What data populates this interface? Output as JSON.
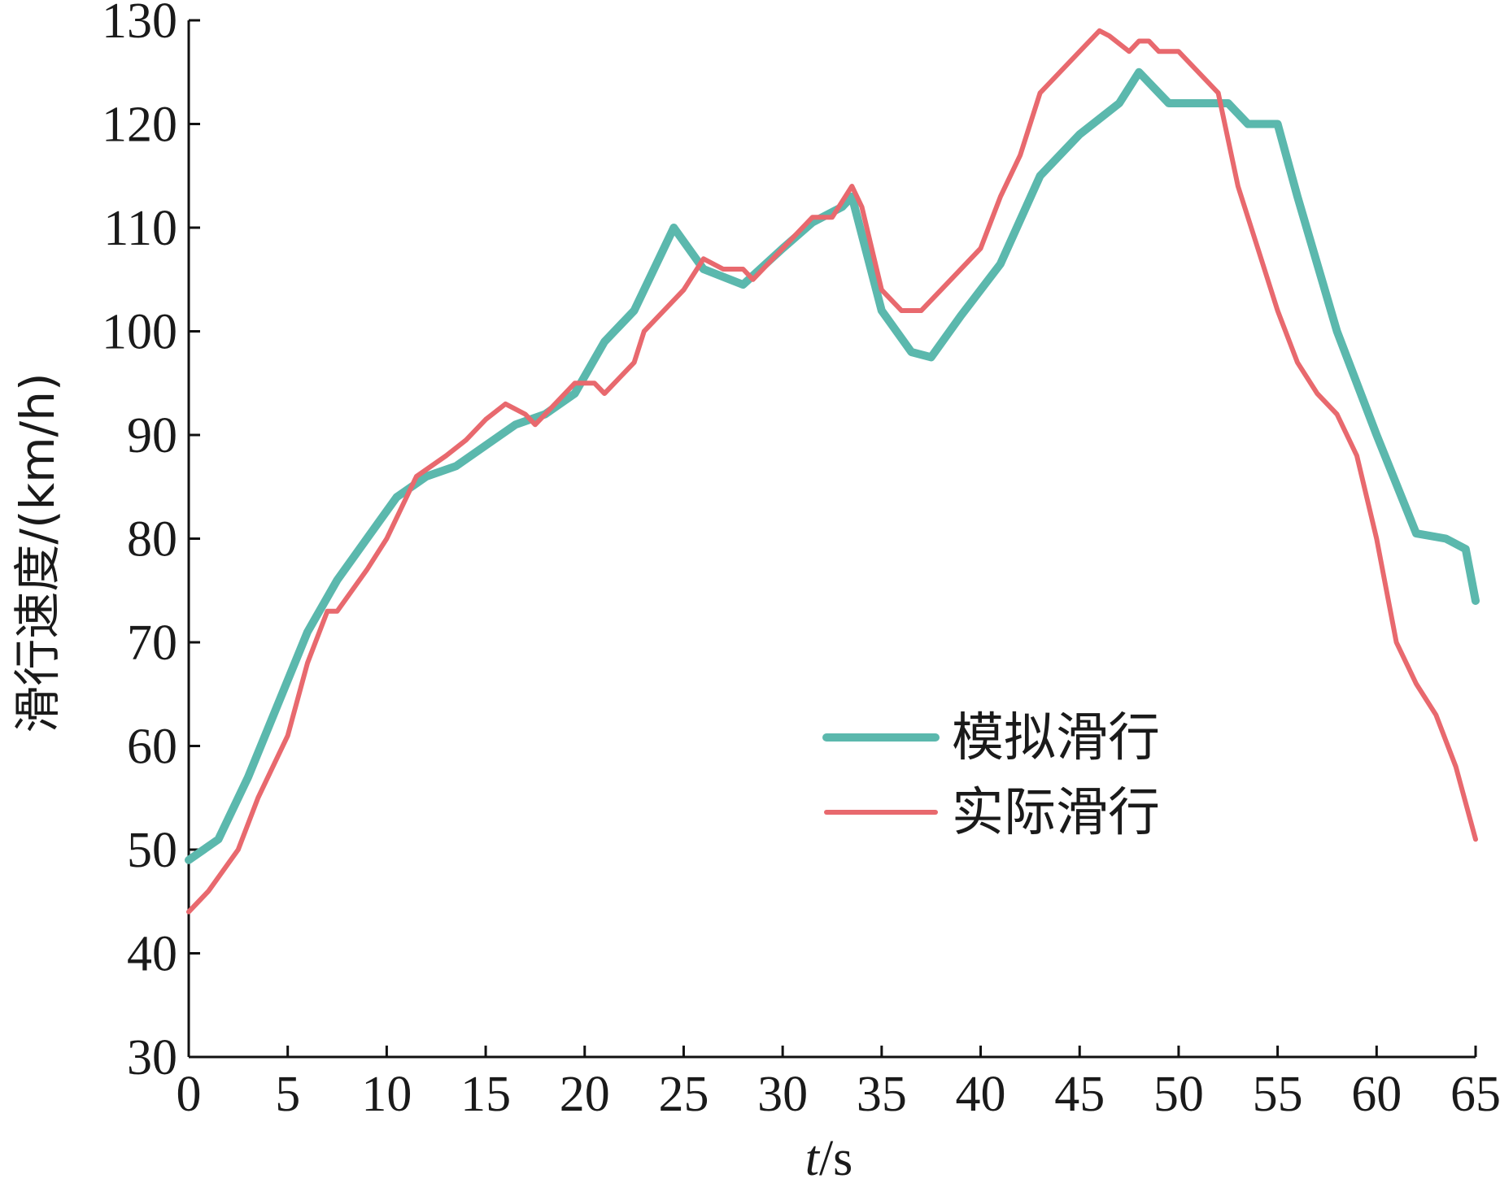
{
  "chart_data": {
    "type": "line",
    "title": "",
    "xlabel": {
      "italic": "t",
      "rest": "/s"
    },
    "ylabel": "滑行速度/(km/h)",
    "xlim": [
      0,
      65
    ],
    "ylim": [
      30,
      130
    ],
    "xticks": [
      0,
      5,
      10,
      15,
      20,
      25,
      30,
      35,
      40,
      45,
      50,
      55,
      60,
      65
    ],
    "yticks": [
      30,
      40,
      50,
      60,
      70,
      80,
      90,
      100,
      110,
      120,
      130
    ],
    "grid": false,
    "legend_position": "center-right",
    "series": [
      {
        "name": "模拟滑行",
        "color": "#5bb8ad",
        "x": [
          0,
          1.5,
          3,
          4.5,
          6,
          7.5,
          9,
          10.5,
          12,
          13.5,
          15,
          16.5,
          18,
          19.5,
          21,
          22.5,
          24.5,
          26,
          28,
          30,
          31.5,
          33,
          33.5,
          35,
          36.5,
          37.5,
          39,
          41,
          43,
          45,
          47,
          48,
          49.5,
          51,
          52.5,
          53.5,
          55,
          56,
          58,
          60,
          62,
          63.5,
          64.5,
          65
        ],
        "values": [
          49,
          51,
          57,
          64,
          71,
          76,
          80,
          84,
          86,
          87,
          89,
          91,
          92,
          94,
          99,
          102,
          110,
          106,
          104.5,
          108,
          110.5,
          112,
          113,
          102,
          98,
          97.5,
          101.5,
          106.5,
          115,
          119,
          122,
          125,
          122,
          122,
          122,
          120,
          120,
          113,
          100,
          90,
          80.5,
          80,
          79,
          74
        ]
      },
      {
        "name": "实际滑行",
        "color": "#e8696e",
        "x": [
          0,
          1,
          2.5,
          3.5,
          4.5,
          5,
          6,
          7,
          7.5,
          9,
          10,
          11.5,
          13,
          14,
          15,
          16,
          17,
          17.5,
          18.5,
          19.5,
          20.5,
          21,
          22.5,
          23,
          25,
          26,
          27,
          28,
          28.5,
          30,
          31.5,
          32.5,
          33.5,
          34,
          35,
          36,
          37,
          38,
          39,
          40,
          41,
          42,
          43,
          44,
          45,
          46,
          46.5,
          47.5,
          48,
          48.5,
          49,
          50,
          52,
          53,
          54,
          55,
          56,
          57,
          58,
          59,
          60,
          61,
          62,
          63,
          64,
          65
        ],
        "values": [
          44,
          46,
          50,
          55,
          59,
          61,
          68,
          73,
          73,
          77,
          80,
          86,
          88,
          89.5,
          91.5,
          93,
          92,
          91,
          93,
          95,
          95,
          94,
          97,
          100,
          104,
          107,
          106,
          106,
          105,
          108,
          111,
          111,
          114,
          112,
          104,
          102,
          102,
          104,
          106,
          108,
          113,
          117,
          123,
          125,
          127,
          129,
          128.5,
          127,
          128,
          128,
          127,
          127,
          123,
          114,
          108,
          102,
          97,
          94,
          92,
          88,
          80,
          70,
          66,
          63,
          58,
          51
        ]
      }
    ]
  }
}
